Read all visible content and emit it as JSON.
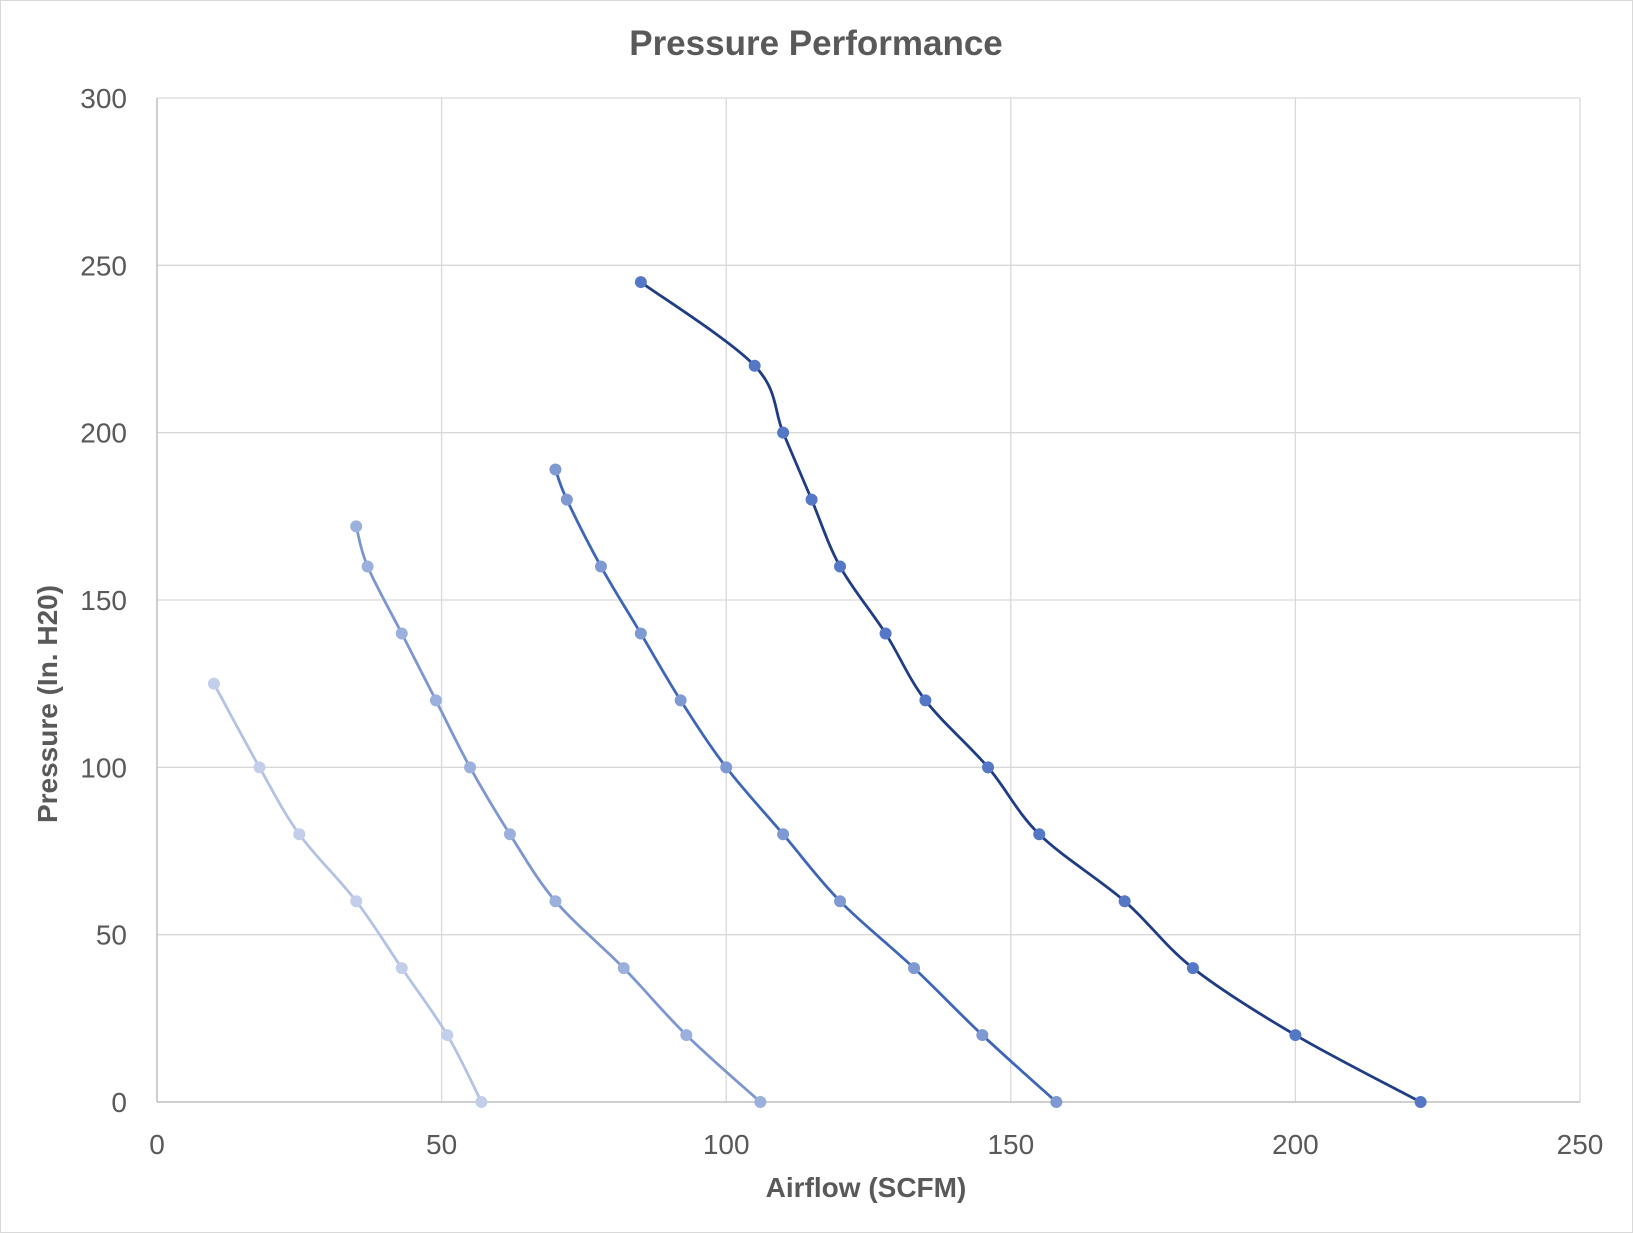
{
  "chart_data": {
    "type": "line",
    "title": "Pressure Performance",
    "xlabel": "Airflow (SCFM)",
    "ylabel": "Pressure (In. H20)",
    "xlim": [
      0,
      250
    ],
    "ylim": [
      0,
      300
    ],
    "xticks": [
      0,
      50,
      100,
      150,
      200,
      250
    ],
    "yticks": [
      0,
      50,
      100,
      150,
      200,
      250,
      300
    ],
    "grid": true,
    "smooth": true,
    "legend": "none",
    "series": [
      {
        "color": "#b4c3e4",
        "marker_color": "#c3cfea",
        "points": [
          [
            10,
            125
          ],
          [
            18,
            100
          ],
          [
            25,
            80
          ],
          [
            35,
            60
          ],
          [
            43,
            40
          ],
          [
            51,
            20
          ],
          [
            57,
            0
          ]
        ]
      },
      {
        "color": "#7d96cf",
        "marker_color": "#9bb0dc",
        "points": [
          [
            35,
            172
          ],
          [
            37,
            160
          ],
          [
            43,
            140
          ],
          [
            49,
            120
          ],
          [
            55,
            100
          ],
          [
            62,
            80
          ],
          [
            70,
            60
          ],
          [
            82,
            40
          ],
          [
            93,
            20
          ],
          [
            106,
            0
          ]
        ]
      },
      {
        "color": "#3d66b8",
        "marker_color": "#7f9ad3",
        "points": [
          [
            70,
            189
          ],
          [
            72,
            180
          ],
          [
            78,
            160
          ],
          [
            85,
            140
          ],
          [
            92,
            120
          ],
          [
            100,
            100
          ],
          [
            110,
            80
          ],
          [
            120,
            60
          ],
          [
            133,
            40
          ],
          [
            145,
            20
          ],
          [
            158,
            0
          ]
        ]
      },
      {
        "color": "#1f3d85",
        "marker_color": "#5578c6",
        "points": [
          [
            85,
            245
          ],
          [
            105,
            220
          ],
          [
            110,
            200
          ],
          [
            115,
            180
          ],
          [
            120,
            160
          ],
          [
            128,
            140
          ],
          [
            135,
            120
          ],
          [
            146,
            100
          ],
          [
            155,
            80
          ],
          [
            170,
            60
          ],
          [
            182,
            40
          ],
          [
            200,
            20
          ],
          [
            222,
            0
          ]
        ]
      }
    ]
  }
}
